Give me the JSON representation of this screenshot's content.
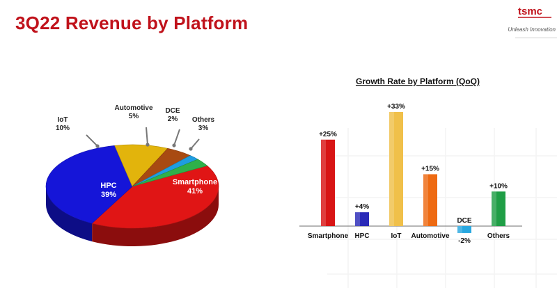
{
  "slide": {
    "title": "3Q22 Revenue by Platform",
    "logo_text": "tsmc",
    "tagline": "Unleash Innovation"
  },
  "chart_data": [
    {
      "type": "pie",
      "title": "",
      "slices": [
        {
          "label": "Smartphone",
          "value": 41,
          "value_label": "41%",
          "color": "#e01515"
        },
        {
          "label": "HPC",
          "value": 39,
          "value_label": "39%",
          "color": "#1515d8"
        },
        {
          "label": "IoT",
          "value": 10,
          "value_label": "10%",
          "color": "#e2b40c"
        },
        {
          "label": "Automotive",
          "value": 5,
          "value_label": "5%",
          "color": "#a84a12"
        },
        {
          "label": "DCE",
          "value": 2,
          "value_label": "2%",
          "color": "#1e9de0"
        },
        {
          "label": "Others",
          "value": 3,
          "value_label": "3%",
          "color": "#2fb04a"
        }
      ]
    },
    {
      "type": "bar",
      "title": "Growth Rate by Platform (QoQ)",
      "categories": [
        "Smartphone",
        "HPC",
        "IoT",
        "Automotive",
        "DCE",
        "Others"
      ],
      "values": [
        25,
        4,
        33,
        15,
        -2,
        10
      ],
      "value_labels": [
        "+25%",
        "+4%",
        "+33%",
        "+15%",
        "-2%",
        "+10%"
      ],
      "colors": [
        "#d81515",
        "#2a2ab8",
        "#f0c04a",
        "#ee6a12",
        "#29a8e0",
        "#1f9e46"
      ],
      "ylim": [
        -3,
        35
      ]
    }
  ]
}
